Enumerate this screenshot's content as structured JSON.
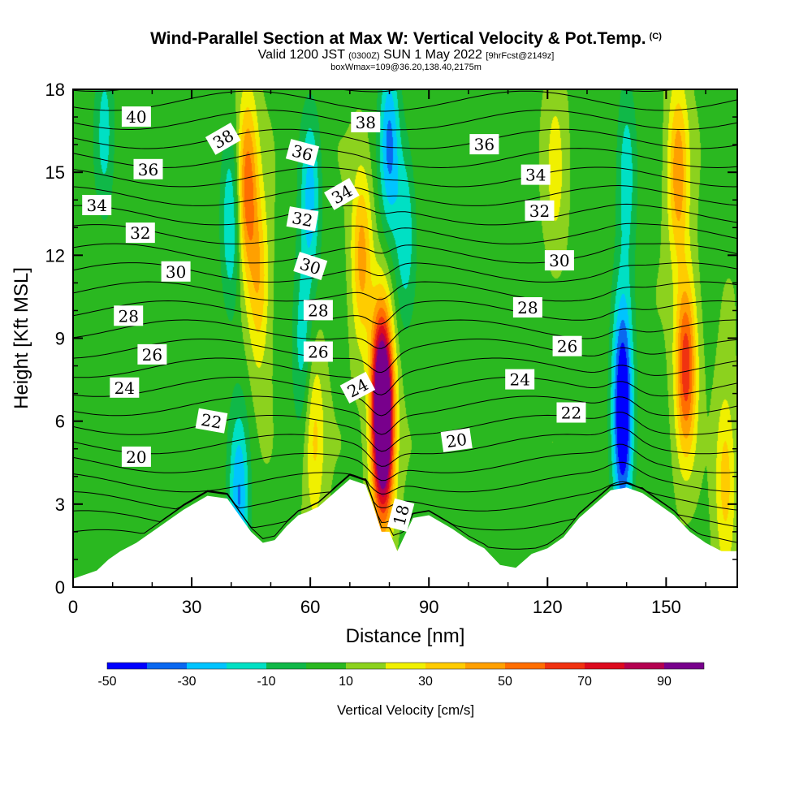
{
  "header": {
    "title": "Wind-Parallel Section at Max W: Vertical Velocity & Pot.Temp.",
    "title_mark": "(C)",
    "valid_prefix": "Valid 1200 JST",
    "valid_utc": "(0300Z)",
    "valid_date": "SUN 1 May 2022",
    "forecast_tag": "[9hrFcst@2149z]",
    "box_info": "boxWmax=109@36.20,138.40,2175m"
  },
  "chart_data": {
    "type": "heatmap",
    "xlabel": "Distance [nm]",
    "ylabel": "Height [Kft MSL]",
    "xlim": [
      0,
      168
    ],
    "ylim": [
      0,
      18
    ],
    "x_ticks": [
      0,
      30,
      60,
      90,
      120,
      150
    ],
    "y_ticks": [
      0,
      3,
      6,
      9,
      12,
      15,
      18
    ],
    "colorbar": {
      "label": "Vertical Velocity [cm/s]",
      "ticks": [
        -50,
        -30,
        -10,
        10,
        30,
        50,
        70,
        90
      ],
      "levels": [
        -50,
        -40,
        -30,
        -20,
        -10,
        0,
        10,
        20,
        30,
        40,
        50,
        60,
        70,
        80,
        90,
        100
      ],
      "colors": [
        "#0000ff",
        "#0a68f0",
        "#00c4ff",
        "#00e0c4",
        "#10b848",
        "#2ab820",
        "#8cd21e",
        "#f0f000",
        "#ffcc00",
        "#ffa000",
        "#ff6e00",
        "#f03210",
        "#dc0a1e",
        "#b40050",
        "#78008c"
      ]
    },
    "vertical_velocity_features": [
      {
        "x": 8,
        "y": 16.5,
        "value": -14
      },
      {
        "x": 44,
        "y": 14.5,
        "value": 58
      },
      {
        "x": 47,
        "y": 11,
        "value": 38
      },
      {
        "x": 40,
        "y": 13,
        "value": -22
      },
      {
        "x": 42,
        "y": 3.2,
        "value": -30
      },
      {
        "x": 60,
        "y": 14,
        "value": -24
      },
      {
        "x": 58,
        "y": 9,
        "value": -16
      },
      {
        "x": 61,
        "y": 5.5,
        "value": 34
      },
      {
        "x": 73,
        "y": 12,
        "value": 44
      },
      {
        "x": 78,
        "y": 7,
        "value": 85
      },
      {
        "x": 78.5,
        "y": 5.5,
        "value": 95
      },
      {
        "x": 80,
        "y": 16,
        "value": -32
      },
      {
        "x": 84,
        "y": 13,
        "value": -18
      },
      {
        "x": 122,
        "y": 15,
        "value": 24
      },
      {
        "x": 140,
        "y": 15,
        "value": -18
      },
      {
        "x": 139,
        "y": 5.5,
        "value": -48
      },
      {
        "x": 139,
        "y": 8.5,
        "value": -20
      },
      {
        "x": 153,
        "y": 15,
        "value": 48
      },
      {
        "x": 155,
        "y": 8,
        "value": 68
      },
      {
        "x": 165,
        "y": 4,
        "value": 36
      }
    ],
    "terrain_profile": {
      "x": [
        0,
        6,
        9,
        12,
        16,
        22,
        28,
        34,
        39,
        42,
        45,
        48,
        51,
        54,
        57,
        59,
        62,
        66,
        70,
        74,
        76,
        78,
        80,
        82,
        86,
        90,
        96,
        100,
        104,
        108,
        112,
        116,
        120,
        124,
        128,
        132,
        136,
        140,
        144,
        148,
        152,
        156,
        160,
        164,
        168
      ],
      "y": [
        0.3,
        0.6,
        1.0,
        1.3,
        1.6,
        2.2,
        2.8,
        3.3,
        3.2,
        2.6,
        2.0,
        1.6,
        1.7,
        2.2,
        2.6,
        2.7,
        2.9,
        3.4,
        3.9,
        3.7,
        2.9,
        2.0,
        2.0,
        1.3,
        2.5,
        2.6,
        2.1,
        1.7,
        1.4,
        0.8,
        0.7,
        1.2,
        1.4,
        1.8,
        2.5,
        3.0,
        3.5,
        3.6,
        3.4,
        3.0,
        2.6,
        2.0,
        1.6,
        1.3,
        1.3
      ]
    },
    "potential_temperature_isolines": {
      "levels": [
        18,
        19,
        20,
        21,
        22,
        23,
        24,
        25,
        26,
        27,
        28,
        29,
        30,
        31,
        32,
        33,
        34,
        35,
        36,
        37,
        38,
        39,
        40,
        41,
        42
      ],
      "labels": [
        {
          "text": "40",
          "x": 16,
          "y": 17.0,
          "angle": 0
        },
        {
          "text": "38",
          "x": 38,
          "y": 16.2,
          "angle": -30
        },
        {
          "text": "36",
          "x": 58,
          "y": 15.7,
          "angle": 15
        },
        {
          "text": "38",
          "x": 74,
          "y": 16.8,
          "angle": 0
        },
        {
          "text": "36",
          "x": 104,
          "y": 16.0,
          "angle": 0
        },
        {
          "text": "36",
          "x": 19,
          "y": 15.1,
          "angle": 0
        },
        {
          "text": "34",
          "x": 6,
          "y": 13.8,
          "angle": 0
        },
        {
          "text": "34",
          "x": 68,
          "y": 14.2,
          "angle": -30
        },
        {
          "text": "34",
          "x": 117,
          "y": 14.9,
          "angle": 0
        },
        {
          "text": "32",
          "x": 17,
          "y": 12.8,
          "angle": 0
        },
        {
          "text": "32",
          "x": 58,
          "y": 13.3,
          "angle": 10
        },
        {
          "text": "32",
          "x": 118,
          "y": 13.6,
          "angle": 0
        },
        {
          "text": "30",
          "x": 26,
          "y": 11.4,
          "angle": 0
        },
        {
          "text": "30",
          "x": 60,
          "y": 11.6,
          "angle": 18
        },
        {
          "text": "30",
          "x": 123,
          "y": 11.8,
          "angle": 0
        },
        {
          "text": "28",
          "x": 14,
          "y": 9.8,
          "angle": 0
        },
        {
          "text": "28",
          "x": 62,
          "y": 10.0,
          "angle": 0
        },
        {
          "text": "28",
          "x": 115,
          "y": 10.1,
          "angle": 0
        },
        {
          "text": "26",
          "x": 20,
          "y": 8.4,
          "angle": 0
        },
        {
          "text": "26",
          "x": 62,
          "y": 8.5,
          "angle": 0
        },
        {
          "text": "26",
          "x": 125,
          "y": 8.7,
          "angle": 0
        },
        {
          "text": "24",
          "x": 13,
          "y": 7.2,
          "angle": 0
        },
        {
          "text": "24",
          "x": 72,
          "y": 7.2,
          "angle": -28
        },
        {
          "text": "24",
          "x": 113,
          "y": 7.5,
          "angle": 0
        },
        {
          "text": "22",
          "x": 35,
          "y": 6.0,
          "angle": 10
        },
        {
          "text": "22",
          "x": 126,
          "y": 6.3,
          "angle": 0
        },
        {
          "text": "20",
          "x": 16,
          "y": 4.7,
          "angle": 0
        },
        {
          "text": "20",
          "x": 97,
          "y": 5.3,
          "angle": -8
        },
        {
          "text": "18",
          "x": 83,
          "y": 2.6,
          "angle": -75
        }
      ]
    }
  }
}
